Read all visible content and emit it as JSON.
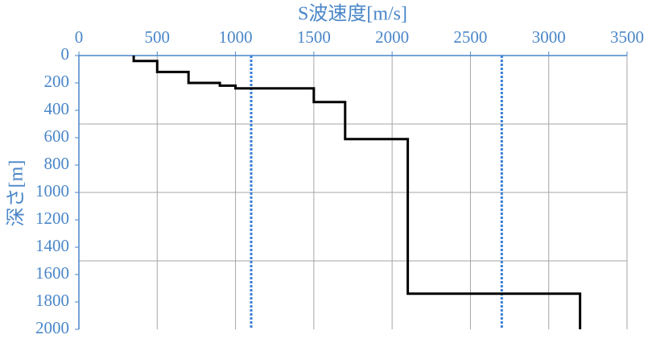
{
  "chart_data": {
    "type": "step-profile",
    "title": "S波速度[m/s]",
    "y_label": "深さ[m]",
    "xlim": [
      0,
      3500
    ],
    "xticks": [
      0,
      500,
      1000,
      1500,
      2000,
      2500,
      3000,
      3500
    ],
    "ylim": [
      0,
      2000
    ],
    "yticks": [
      0,
      200,
      400,
      600,
      800,
      1000,
      1200,
      1400,
      1600,
      1800,
      2000
    ],
    "ygrid": [
      500,
      1000,
      1500
    ],
    "y_inverted": true,
    "x_axis_position": "top",
    "grid": true,
    "axis_color": "#4a86c8",
    "series": [
      {
        "color": "#000000",
        "x": [
          350,
          350,
          500,
          500,
          700,
          700,
          900,
          900,
          1000,
          1000,
          1500,
          1500,
          1700,
          1700,
          2100,
          2100,
          3200,
          3200
        ],
        "values": [
          0,
          40,
          40,
          120,
          120,
          200,
          200,
          220,
          220,
          240,
          240,
          340,
          340,
          610,
          610,
          1740,
          1740,
          2000
        ]
      }
    ],
    "reference_lines": {
      "color": "#3a7fd5",
      "x": [
        1100,
        2700
      ]
    }
  }
}
